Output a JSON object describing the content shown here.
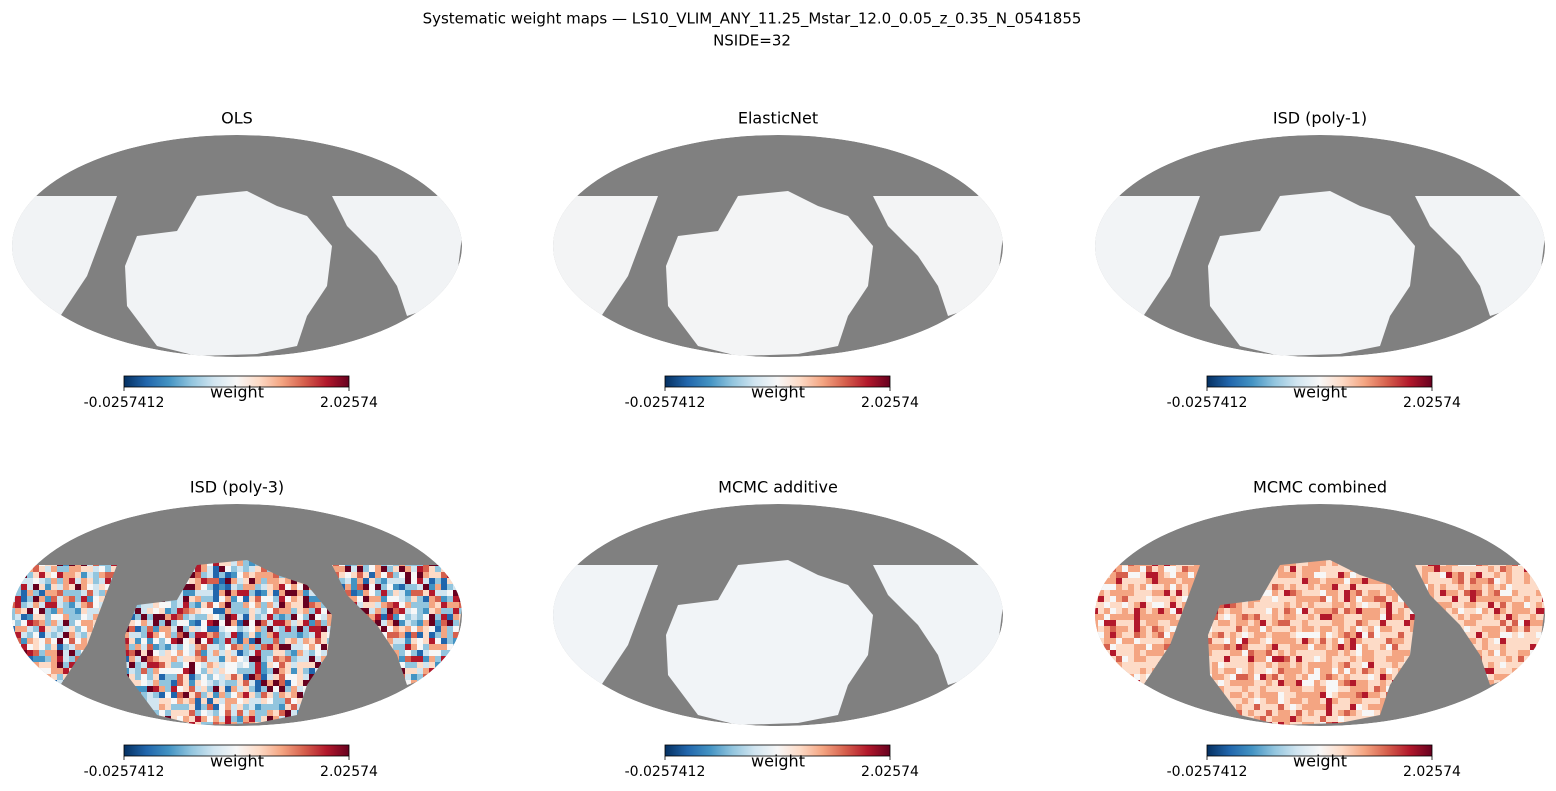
{
  "header": {
    "title": "Systematic weight maps — LS10_VLIM_ANY_11.25_Mstar_12.0_0.05_z_0.35_N_0541855",
    "subtitle": "NSIDE=32"
  },
  "panels": [
    {
      "title": "OLS",
      "colorbar": {
        "label": "weight",
        "ticks": [
          -0.0257412,
          2.02574
        ]
      }
    },
    {
      "title": "ElasticNet",
      "colorbar": {
        "label": "weight",
        "ticks": [
          -0.0257412,
          2.02574
        ]
      }
    },
    {
      "title": "ISD (poly-1)",
      "colorbar": {
        "label": "weight",
        "ticks": [
          -0.0257412,
          2.02574
        ]
      }
    },
    {
      "title": "ISD (poly-3)",
      "colorbar": {
        "label": "weight",
        "ticks": [
          -0.0257412,
          2.02574
        ]
      }
    },
    {
      "title": "MCMC additive",
      "colorbar": {
        "label": "weight",
        "ticks": [
          -0.0257412,
          2.02574
        ]
      }
    },
    {
      "title": "MCMC combined",
      "colorbar": {
        "label": "weight",
        "ticks": [
          -0.0257412,
          2.02574
        ]
      }
    }
  ]
}
